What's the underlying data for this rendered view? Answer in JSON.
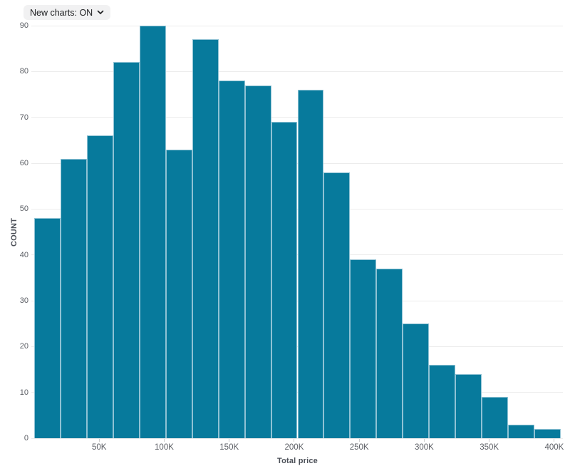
{
  "toolbar": {
    "new_charts_dropdown": {
      "label": "New charts: ON",
      "icon": "chevron-down"
    }
  },
  "chart_data": {
    "type": "bar",
    "subtype": "histogram",
    "title": "",
    "xlabel": "Total price",
    "ylabel": "COUNT",
    "legend": "none",
    "grid": "horizontal-only",
    "bin_width": 20000,
    "bins": [
      "0-20K",
      "20K-40K",
      "40K-60K",
      "60K-80K",
      "80K-100K",
      "100K-120K",
      "120K-140K",
      "140K-160K",
      "160K-180K",
      "180K-200K",
      "200K-220K",
      "220K-240K",
      "240K-260K",
      "260K-280K",
      "280K-300K",
      "300K-320K",
      "320K-340K",
      "340K-360K",
      "360K-380K",
      "380K-400K"
    ],
    "values": [
      48,
      61,
      66,
      82,
      90,
      63,
      87,
      78,
      77,
      69,
      76,
      58,
      39,
      37,
      25,
      16,
      14,
      9,
      3,
      2
    ],
    "ylim": [
      0,
      90
    ],
    "y_ticks": [
      0,
      10,
      20,
      30,
      40,
      50,
      60,
      70,
      80,
      90
    ],
    "x_axis_range": [
      0,
      405000
    ],
    "x_tick_values": [
      50000,
      100000,
      150000,
      200000,
      250000,
      300000,
      350000,
      400000
    ],
    "x_tick_labels": [
      "50K",
      "100K",
      "150K",
      "200K",
      "250K",
      "300K",
      "350K",
      "400K"
    ],
    "colors": {
      "bar_fill": "#077a9c",
      "bar_border": "#8fc2d4",
      "gridline": "#ececec",
      "tick_label": "#5b5e64",
      "axis_title": "#4b4f57",
      "pill_background": "#f1f1f2",
      "pill_text": "#1d1e20"
    }
  }
}
